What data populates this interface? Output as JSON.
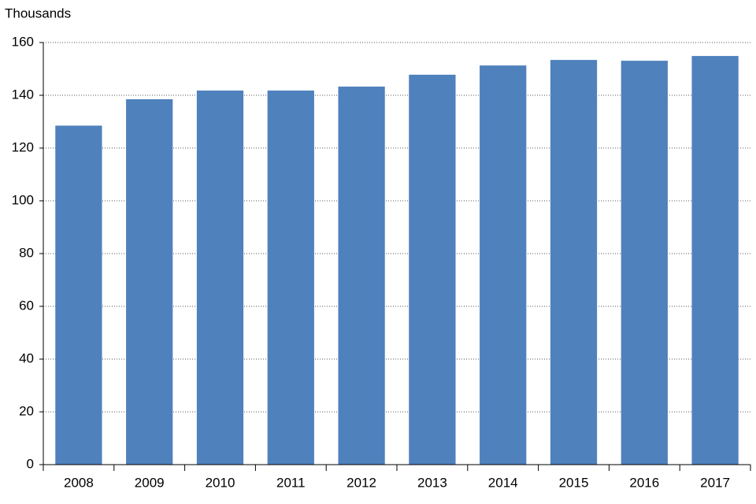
{
  "chart_data": {
    "type": "bar",
    "y_label": "Thousands",
    "categories": [
      "2008",
      "2009",
      "2010",
      "2011",
      "2012",
      "2013",
      "2014",
      "2015",
      "2016",
      "2017"
    ],
    "values": [
      128.5,
      138.5,
      141.8,
      141.8,
      143.3,
      147.8,
      151.3,
      153.4,
      153.1,
      154.9
    ],
    "color": "#4f81bd",
    "ylim": [
      0,
      160
    ],
    "yticks": [
      0,
      20,
      40,
      60,
      80,
      100,
      120,
      140,
      160
    ],
    "grid": true
  }
}
